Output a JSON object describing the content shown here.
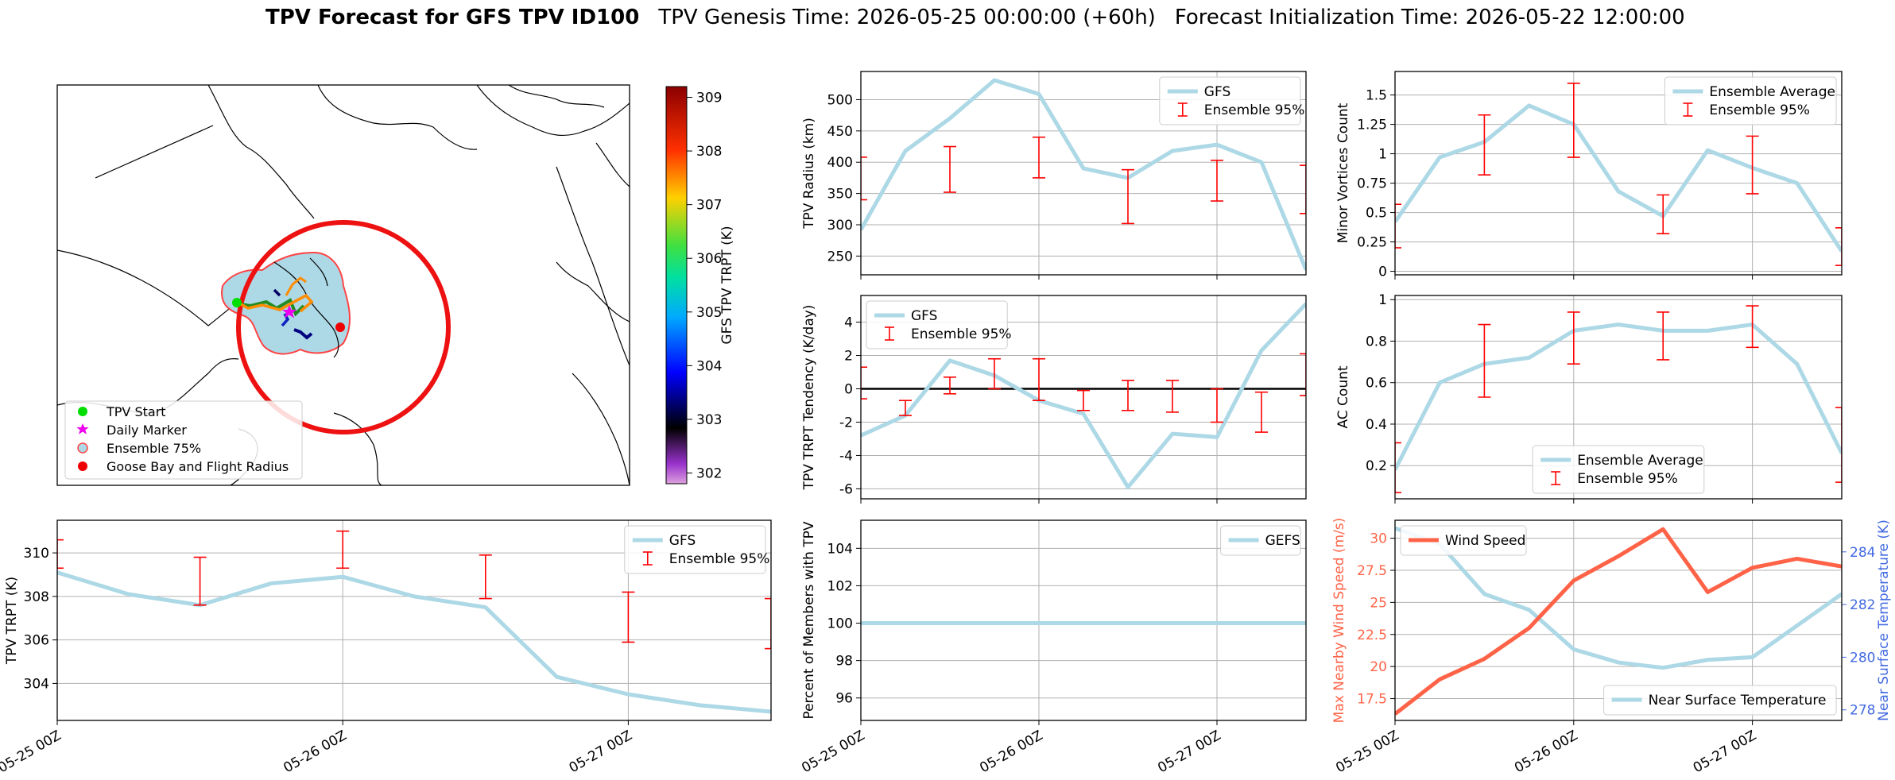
{
  "header": {
    "title_bold": "TPV Forecast for GFS TPV ID100",
    "genesis": "TPV Genesis Time: 2026-05-25 00:00:00 (+60h)",
    "init": "Forecast Initialization Time: 2026-05-22 12:00:00"
  },
  "map": {
    "colorbar_label": "GFS TPV TRPT (K)",
    "colorbar_ticks": [
      302,
      303,
      304,
      305,
      306,
      307,
      308,
      309
    ],
    "colorbar_range": [
      301.8,
      309.2
    ],
    "legend": [
      "TPV Start",
      "Daily Marker",
      "Ensemble 75%",
      "Goose Bay and Flight Radius"
    ],
    "colors": {
      "start": "#00dd00",
      "daily": "#ee00ee",
      "ensemble_fill": "#add8e6",
      "ensemble_edge": "#ff4444",
      "goose": "#ee0000",
      "track": "#ff8c00"
    }
  },
  "x_ticks": [
    "05-25 00Z",
    "05-26 00Z",
    "05-27 00Z"
  ],
  "colors": {
    "gfs": "#add8e6",
    "err": "#ff0000",
    "wind": "#ff6347",
    "temp_axis": "#4169e1",
    "zero": "#000000"
  },
  "chart_data": [
    {
      "id": "trpt",
      "type": "line",
      "ylabel": "TPV TRPT (K)",
      "ylim": [
        302.3,
        311.5
      ],
      "yticks": [
        304,
        306,
        308,
        310
      ],
      "x": [
        0,
        6,
        12,
        18,
        24,
        30,
        36,
        42,
        48,
        54,
        60
      ],
      "series": [
        {
          "name": "GFS",
          "values": [
            309.1,
            308.1,
            307.6,
            308.6,
            308.9,
            308.0,
            307.5,
            304.3,
            303.5,
            303.0,
            302.7
          ]
        }
      ],
      "errorbars": {
        "name": "Ensemble 95%",
        "x": [
          0,
          12,
          24,
          36,
          48,
          60
        ],
        "low": [
          309.3,
          307.6,
          309.3,
          307.9,
          305.9,
          305.6
        ],
        "high": [
          310.6,
          309.8,
          311.0,
          309.9,
          308.2,
          307.9
        ]
      }
    },
    {
      "id": "radius",
      "type": "line",
      "ylabel": "TPV Radius (km)",
      "ylim": [
        220,
        545
      ],
      "yticks": [
        250,
        300,
        350,
        400,
        450,
        500
      ],
      "x": [
        0,
        3,
        6,
        9,
        12,
        15,
        18,
        21,
        24,
        27,
        30
      ],
      "series": [
        {
          "name": "GFS",
          "values": [
            292,
            418,
            470,
            531,
            509,
            390,
            375,
            418,
            428,
            400,
            228
          ]
        }
      ],
      "errorbars": {
        "name": "Ensemble 95%",
        "x": [
          0,
          6,
          12,
          18,
          24,
          30
        ],
        "low": [
          340,
          352,
          375,
          302,
          338,
          318
        ],
        "high": [
          408,
          425,
          440,
          388,
          403,
          395
        ]
      }
    },
    {
      "id": "minor",
      "type": "line",
      "ylabel": "Minor Vortices Count",
      "ylim": [
        -0.03,
        1.7
      ],
      "yticks": [
        0.0,
        0.25,
        0.5,
        0.75,
        1.0,
        1.25,
        1.5
      ],
      "x": [
        0,
        3,
        6,
        9,
        12,
        15,
        18,
        21,
        24,
        27,
        30
      ],
      "series": [
        {
          "name": "Ensemble Average",
          "values": [
            0.42,
            0.97,
            1.1,
            1.41,
            1.25,
            0.68,
            0.47,
            1.03,
            0.88,
            0.75,
            0.17
          ]
        }
      ],
      "errorbars": {
        "name": "Ensemble 95%",
        "x": [
          0,
          6,
          12,
          18,
          24,
          30
        ],
        "low": [
          0.2,
          0.82,
          0.97,
          0.32,
          0.66,
          0.05
        ],
        "high": [
          0.57,
          1.33,
          1.6,
          0.65,
          1.15,
          0.37
        ]
      }
    },
    {
      "id": "tendency",
      "type": "line",
      "ylabel": "TPV TRPT Tendency (K/day)",
      "ylim": [
        -6.6,
        5.6
      ],
      "yticks": [
        -6,
        -4,
        -2,
        0,
        2,
        4
      ],
      "x": [
        0,
        3,
        6,
        9,
        12,
        15,
        18,
        21,
        24,
        27,
        30
      ],
      "series": [
        {
          "name": "GFS",
          "values": [
            -2.8,
            -1.6,
            1.7,
            0.8,
            -0.7,
            -1.5,
            -5.9,
            -2.7,
            -2.9,
            2.3,
            5.1
          ]
        }
      ],
      "errorbars": {
        "name": "Ensemble 95%",
        "x": [
          0,
          3,
          6,
          9,
          12,
          15,
          18,
          21,
          24,
          27,
          30
        ],
        "low": [
          -0.6,
          -1.6,
          -0.3,
          0.0,
          -0.7,
          -1.3,
          -1.3,
          -1.4,
          -2.0,
          -2.6,
          -0.4
        ],
        "high": [
          1.3,
          -0.7,
          0.7,
          1.8,
          1.8,
          -0.1,
          0.5,
          0.5,
          0.0,
          -0.2,
          2.1
        ]
      }
    },
    {
      "id": "ac",
      "type": "line",
      "ylabel": "AC Count",
      "ylim": [
        0.04,
        1.02
      ],
      "yticks": [
        0.2,
        0.4,
        0.6,
        0.8,
        1.0
      ],
      "x": [
        0,
        3,
        6,
        9,
        12,
        15,
        18,
        21,
        24,
        27,
        30
      ],
      "series": [
        {
          "name": "Ensemble Average",
          "values": [
            0.18,
            0.6,
            0.69,
            0.72,
            0.85,
            0.88,
            0.85,
            0.85,
            0.88,
            0.69,
            0.26
          ]
        }
      ],
      "errorbars": {
        "name": "Ensemble 95%",
        "x": [
          0,
          6,
          12,
          18,
          24,
          30
        ],
        "low": [
          0.07,
          0.53,
          0.69,
          0.71,
          0.77,
          0.12
        ],
        "high": [
          0.31,
          0.88,
          0.94,
          0.94,
          0.97,
          0.48
        ]
      }
    },
    {
      "id": "percent",
      "type": "line",
      "ylabel": "Percent of Members with TPV",
      "ylim": [
        94.8,
        105.5
      ],
      "yticks": [
        96,
        98,
        100,
        102,
        104
      ],
      "x": [
        0,
        30
      ],
      "series": [
        {
          "name": "GEFS",
          "values": [
            100,
            100
          ]
        }
      ]
    },
    {
      "id": "wind",
      "type": "line",
      "ylabel": "Max Nearby Wind Speed (m/s)",
      "ylim": [
        15.8,
        31.4
      ],
      "yticks": [
        17.5,
        20.0,
        22.5,
        25.0,
        27.5,
        30.0
      ],
      "x": [
        0,
        3,
        6,
        9,
        12,
        15,
        18,
        21,
        24,
        27,
        30
      ],
      "series": [
        {
          "name": "Wind Speed",
          "values": [
            16.3,
            19.0,
            20.6,
            23.0,
            26.7,
            28.6,
            30.7,
            25.8,
            27.7,
            28.4,
            27.8
          ]
        }
      ],
      "y2label": "Near Surface Temperature (K)",
      "y2lim": [
        277.6,
        285.2
      ],
      "y2ticks": [
        278,
        280,
        282,
        284
      ],
      "series2": [
        {
          "name": "Near Surface Temperature",
          "values": [
            284.9,
            284.3,
            282.4,
            281.8,
            280.3,
            279.8,
            279.6,
            279.9,
            280.0,
            281.2,
            282.4
          ]
        }
      ]
    }
  ]
}
